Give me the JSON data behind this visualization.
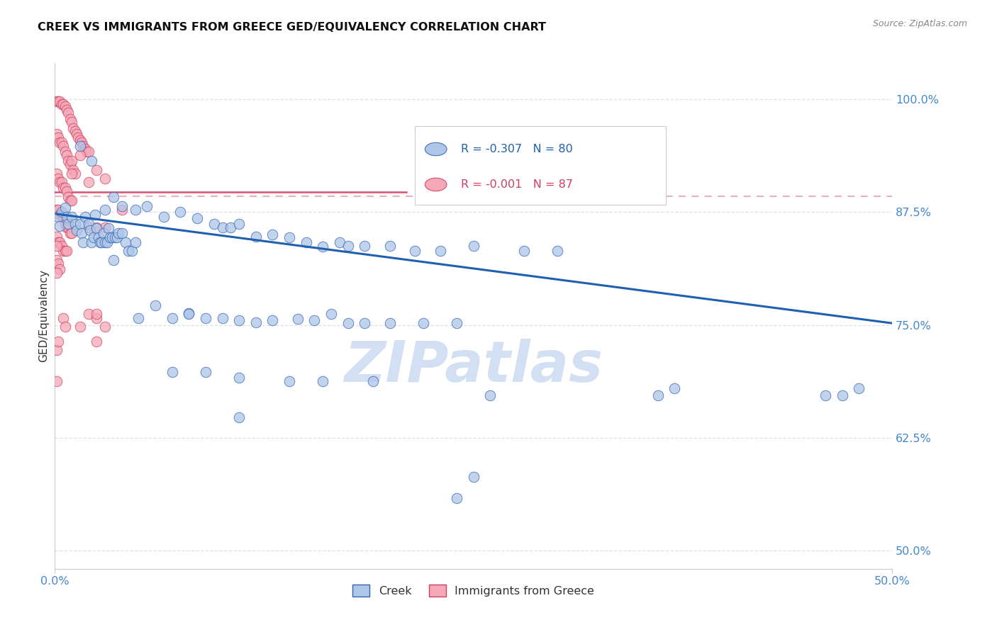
{
  "title": "CREEK VS IMMIGRANTS FROM GREECE GED/EQUIVALENCY CORRELATION CHART",
  "source": "Source: ZipAtlas.com",
  "ylabel": "GED/Equivalency",
  "yticks": [
    0.5,
    0.625,
    0.75,
    0.875,
    1.0
  ],
  "ytick_labels": [
    "50.0%",
    "62.5%",
    "75.0%",
    "87.5%",
    "100.0%"
  ],
  "xmin": 0.0,
  "xmax": 0.5,
  "ymin": 0.48,
  "ymax": 1.04,
  "legend_blue_R": "-0.307",
  "legend_blue_N": "80",
  "legend_pink_R": "-0.001",
  "legend_pink_N": "87",
  "blue_fill": "#aec6e8",
  "pink_fill": "#f4a8b8",
  "blue_edge": "#3565b0",
  "pink_edge": "#d04060",
  "blue_line_color": "#2060b0",
  "pink_line_color": "#d04060",
  "blue_scatter": [
    [
      0.002,
      0.87
    ],
    [
      0.003,
      0.86
    ],
    [
      0.004,
      0.875
    ],
    [
      0.006,
      0.88
    ],
    [
      0.007,
      0.87
    ],
    [
      0.008,
      0.862
    ],
    [
      0.01,
      0.87
    ],
    [
      0.012,
      0.862
    ],
    [
      0.013,
      0.855
    ],
    [
      0.015,
      0.862
    ],
    [
      0.016,
      0.852
    ],
    [
      0.017,
      0.842
    ],
    [
      0.018,
      0.87
    ],
    [
      0.02,
      0.862
    ],
    [
      0.021,
      0.855
    ],
    [
      0.022,
      0.842
    ],
    [
      0.023,
      0.847
    ],
    [
      0.024,
      0.872
    ],
    [
      0.025,
      0.857
    ],
    [
      0.026,
      0.847
    ],
    [
      0.027,
      0.842
    ],
    [
      0.028,
      0.842
    ],
    [
      0.029,
      0.852
    ],
    [
      0.03,
      0.842
    ],
    [
      0.031,
      0.842
    ],
    [
      0.032,
      0.857
    ],
    [
      0.033,
      0.847
    ],
    [
      0.034,
      0.847
    ],
    [
      0.035,
      0.822
    ],
    [
      0.036,
      0.847
    ],
    [
      0.037,
      0.847
    ],
    [
      0.038,
      0.852
    ],
    [
      0.04,
      0.852
    ],
    [
      0.042,
      0.842
    ],
    [
      0.044,
      0.832
    ],
    [
      0.046,
      0.832
    ],
    [
      0.048,
      0.842
    ],
    [
      0.015,
      0.948
    ],
    [
      0.022,
      0.932
    ],
    [
      0.03,
      0.878
    ],
    [
      0.035,
      0.892
    ],
    [
      0.04,
      0.882
    ],
    [
      0.048,
      0.878
    ],
    [
      0.055,
      0.882
    ],
    [
      0.065,
      0.87
    ],
    [
      0.075,
      0.875
    ],
    [
      0.085,
      0.868
    ],
    [
      0.095,
      0.862
    ],
    [
      0.1,
      0.858
    ],
    [
      0.105,
      0.858
    ],
    [
      0.11,
      0.862
    ],
    [
      0.12,
      0.848
    ],
    [
      0.13,
      0.85
    ],
    [
      0.14,
      0.847
    ],
    [
      0.15,
      0.842
    ],
    [
      0.16,
      0.837
    ],
    [
      0.17,
      0.842
    ],
    [
      0.175,
      0.838
    ],
    [
      0.185,
      0.838
    ],
    [
      0.2,
      0.838
    ],
    [
      0.215,
      0.832
    ],
    [
      0.23,
      0.832
    ],
    [
      0.25,
      0.838
    ],
    [
      0.28,
      0.832
    ],
    [
      0.3,
      0.832
    ],
    [
      0.06,
      0.772
    ],
    [
      0.07,
      0.758
    ],
    [
      0.08,
      0.763
    ],
    [
      0.09,
      0.758
    ],
    [
      0.1,
      0.758
    ],
    [
      0.11,
      0.755
    ],
    [
      0.12,
      0.753
    ],
    [
      0.13,
      0.755
    ],
    [
      0.145,
      0.757
    ],
    [
      0.155,
      0.755
    ],
    [
      0.165,
      0.762
    ],
    [
      0.175,
      0.752
    ],
    [
      0.185,
      0.752
    ],
    [
      0.2,
      0.752
    ],
    [
      0.22,
      0.752
    ],
    [
      0.24,
      0.752
    ],
    [
      0.05,
      0.758
    ],
    [
      0.07,
      0.698
    ],
    [
      0.08,
      0.762
    ],
    [
      0.09,
      0.698
    ],
    [
      0.11,
      0.692
    ],
    [
      0.14,
      0.688
    ],
    [
      0.16,
      0.688
    ],
    [
      0.19,
      0.688
    ],
    [
      0.26,
      0.672
    ],
    [
      0.46,
      0.672
    ],
    [
      0.11,
      0.648
    ],
    [
      0.36,
      0.672
    ],
    [
      0.47,
      0.672
    ],
    [
      0.25,
      0.582
    ],
    [
      0.37,
      0.68
    ],
    [
      0.48,
      0.68
    ],
    [
      0.24,
      0.558
    ]
  ],
  "pink_scatter": [
    [
      0.001,
      0.998
    ],
    [
      0.002,
      0.998
    ],
    [
      0.003,
      0.998
    ],
    [
      0.004,
      0.995
    ],
    [
      0.005,
      0.995
    ],
    [
      0.006,
      0.992
    ],
    [
      0.007,
      0.988
    ],
    [
      0.008,
      0.985
    ],
    [
      0.009,
      0.978
    ],
    [
      0.01,
      0.975
    ],
    [
      0.011,
      0.968
    ],
    [
      0.012,
      0.965
    ],
    [
      0.013,
      0.962
    ],
    [
      0.014,
      0.958
    ],
    [
      0.015,
      0.955
    ],
    [
      0.016,
      0.952
    ],
    [
      0.017,
      0.948
    ],
    [
      0.018,
      0.945
    ],
    [
      0.019,
      0.942
    ],
    [
      0.02,
      0.942
    ],
    [
      0.001,
      0.962
    ],
    [
      0.002,
      0.958
    ],
    [
      0.003,
      0.952
    ],
    [
      0.004,
      0.952
    ],
    [
      0.005,
      0.948
    ],
    [
      0.006,
      0.942
    ],
    [
      0.007,
      0.938
    ],
    [
      0.008,
      0.932
    ],
    [
      0.009,
      0.928
    ],
    [
      0.01,
      0.932
    ],
    [
      0.011,
      0.922
    ],
    [
      0.012,
      0.918
    ],
    [
      0.001,
      0.918
    ],
    [
      0.002,
      0.912
    ],
    [
      0.003,
      0.908
    ],
    [
      0.004,
      0.908
    ],
    [
      0.005,
      0.902
    ],
    [
      0.006,
      0.902
    ],
    [
      0.007,
      0.898
    ],
    [
      0.008,
      0.892
    ],
    [
      0.009,
      0.888
    ],
    [
      0.01,
      0.888
    ],
    [
      0.001,
      0.878
    ],
    [
      0.002,
      0.878
    ],
    [
      0.003,
      0.872
    ],
    [
      0.004,
      0.872
    ],
    [
      0.005,
      0.868
    ],
    [
      0.006,
      0.862
    ],
    [
      0.007,
      0.858
    ],
    [
      0.008,
      0.858
    ],
    [
      0.009,
      0.852
    ],
    [
      0.01,
      0.852
    ],
    [
      0.001,
      0.848
    ],
    [
      0.002,
      0.842
    ],
    [
      0.003,
      0.842
    ],
    [
      0.004,
      0.838
    ],
    [
      0.005,
      0.832
    ],
    [
      0.006,
      0.832
    ],
    [
      0.007,
      0.832
    ],
    [
      0.001,
      0.822
    ],
    [
      0.002,
      0.818
    ],
    [
      0.003,
      0.812
    ],
    [
      0.015,
      0.938
    ],
    [
      0.025,
      0.922
    ],
    [
      0.03,
      0.912
    ],
    [
      0.02,
      0.858
    ],
    [
      0.025,
      0.858
    ],
    [
      0.03,
      0.858
    ],
    [
      0.01,
      0.918
    ],
    [
      0.02,
      0.908
    ],
    [
      0.04,
      0.878
    ],
    [
      0.001,
      0.838
    ],
    [
      0.001,
      0.808
    ],
    [
      0.02,
      0.762
    ],
    [
      0.025,
      0.758
    ],
    [
      0.015,
      0.748
    ],
    [
      0.005,
      0.758
    ],
    [
      0.006,
      0.748
    ],
    [
      0.03,
      0.748
    ],
    [
      0.025,
      0.732
    ],
    [
      0.001,
      0.722
    ],
    [
      0.002,
      0.732
    ],
    [
      0.001,
      0.688
    ],
    [
      0.025,
      0.762
    ]
  ],
  "blue_trend": [
    0.001,
    0.873,
    0.5,
    0.752
  ],
  "pink_trend_solid": [
    0.0,
    0.897,
    0.21,
    0.897
  ],
  "pink_trend_dashed": [
    0.0,
    0.893,
    0.5,
    0.893
  ],
  "watermark_text": "ZIPatlas",
  "watermark_color": "#ccdaf0",
  "background_color": "#ffffff",
  "grid_color": "#e0e0ea",
  "tick_color": "#4488cc",
  "ylabel_color": "#333333"
}
